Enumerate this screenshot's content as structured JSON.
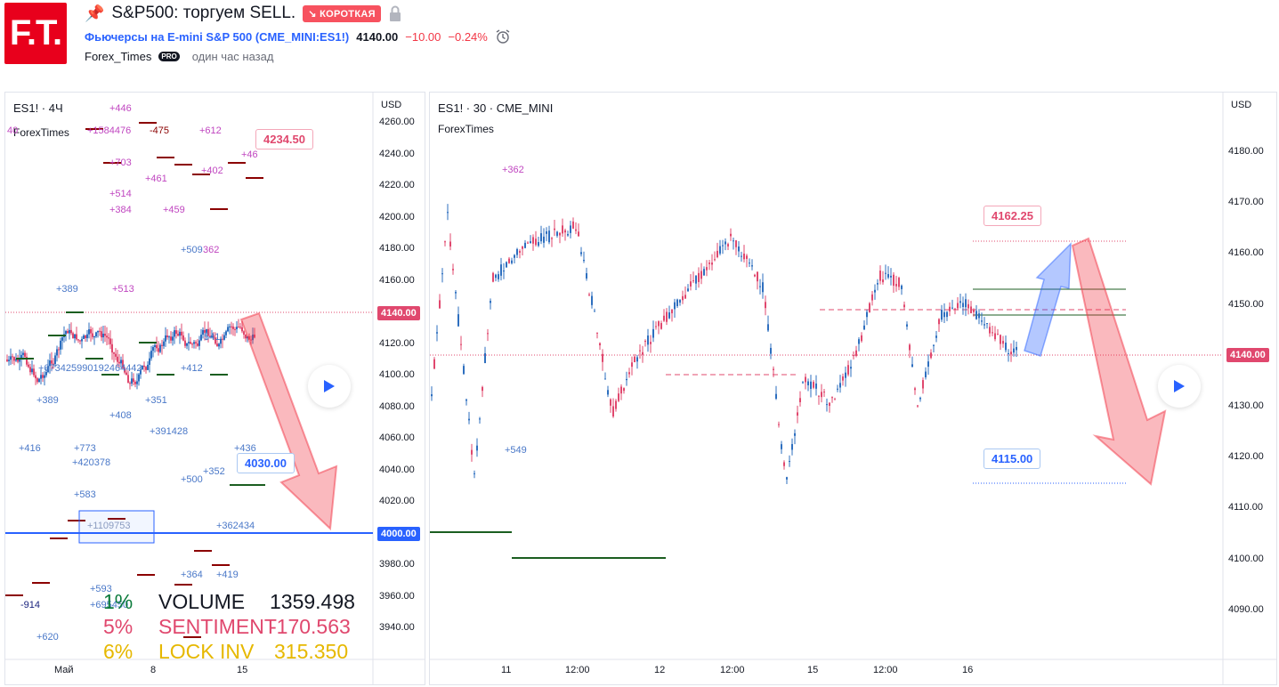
{
  "header": {
    "logo_text": "F.T.",
    "title": "S&P500: торгуем SELL.",
    "badge": "↘ КОРОТКАЯ",
    "symbol_name": "Фьючерсы на E-mini S&P 500",
    "symbol_code": "(CME_MINI:ES1!)",
    "price": "4140.00",
    "change": "−10.00",
    "change_pct": "−0.24%",
    "author": "Forex_Times",
    "pro_badge": "PRO",
    "posted": "один час назад"
  },
  "left_chart": {
    "title": "ES1! · 4Ч",
    "watermark": "ForexTimes",
    "currency": "USD",
    "y_ticks": [
      "4260.00",
      "4240.00",
      "4220.00",
      "4200.00",
      "4180.00",
      "4160.00",
      "4140.00",
      "4120.00",
      "4100.00",
      "4080.00",
      "4060.00",
      "4040.00",
      "4020.00",
      "4000.00",
      "3980.00",
      "3960.00",
      "3940.00"
    ],
    "x_ticks": [
      "Май",
      "8",
      "15"
    ],
    "price_tag": "4140.00",
    "level_tag": "4000.00",
    "callout_high": "4234.50",
    "callout_low": "4030.00",
    "annotations": [
      "+446",
      "+1584476",
      "-475",
      "+612",
      "+703",
      "+402",
      "+461",
      "+514",
      "+384",
      "+459",
      "+509",
      "362",
      "+389",
      "+513",
      "+46",
      "+673425990192464442",
      "+412",
      "541",
      "+389",
      "+351",
      "+408",
      "+391428",
      "+416",
      "+773",
      "+420378",
      "+436",
      "+352",
      "+500",
      "+583",
      "+1109753",
      "+362434",
      "+364",
      "+419",
      "+593",
      "+695450",
      "-914",
      "+620",
      "40"
    ],
    "stats": [
      {
        "pct": "1%",
        "label": "VOLUME",
        "value": "1359.498",
        "color": "#0a7a3a"
      },
      {
        "pct": "5%",
        "label": "SENTIMENT",
        "value": "-170.563",
        "color": "#e0486e"
      },
      {
        "pct": "6%",
        "label": "LOCK INV",
        "value": "315.350",
        "color": "#e6b800"
      }
    ]
  },
  "right_chart": {
    "title": "ES1! · 30 · CME_MINI",
    "watermark": "ForexTimes",
    "currency": "USD",
    "y_ticks": [
      "4180.00",
      "4170.00",
      "4160.00",
      "4150.00",
      "4140.00",
      "4130.00",
      "4120.00",
      "4110.00",
      "4100.00",
      "4090.00"
    ],
    "x_ticks": [
      "11",
      "12:00",
      "12",
      "12:00",
      "15",
      "12:00",
      "16"
    ],
    "price_tag": "4140.00",
    "callout_high": "4162.25",
    "callout_low": "4115.00",
    "annotations": [
      "+362",
      "+549"
    ]
  }
}
